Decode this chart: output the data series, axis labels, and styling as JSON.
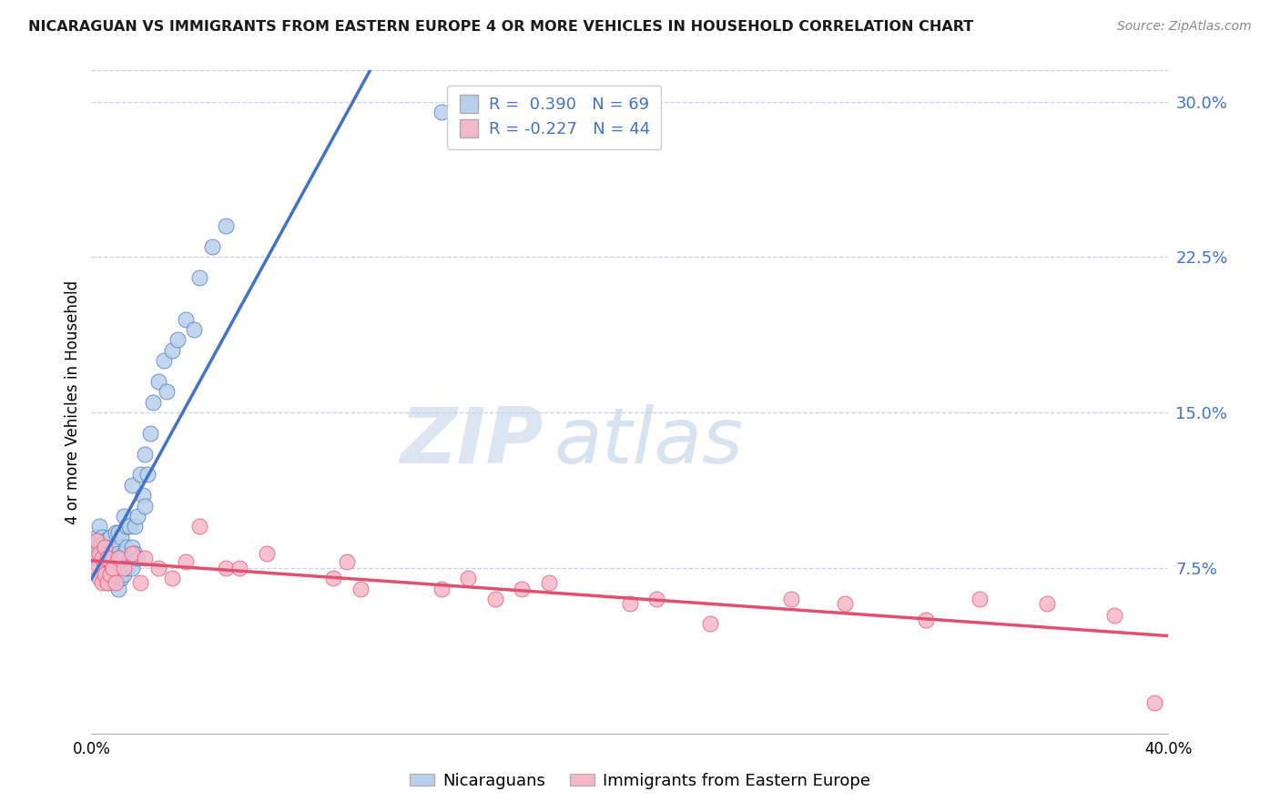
{
  "title": "NICARAGUAN VS IMMIGRANTS FROM EASTERN EUROPE 4 OR MORE VEHICLES IN HOUSEHOLD CORRELATION CHART",
  "source": "Source: ZipAtlas.com",
  "ylabel": "4 or more Vehicles in Household",
  "xlim": [
    0.0,
    0.4
  ],
  "ylim": [
    -0.005,
    0.315
  ],
  "xtick_pos": [
    0.0,
    0.4
  ],
  "xtick_labels": [
    "0.0%",
    "40.0%"
  ],
  "yticks": [
    0.075,
    0.15,
    0.225,
    0.3
  ],
  "ytick_labels": [
    "7.5%",
    "15.0%",
    "22.5%",
    "30.0%"
  ],
  "blue_R": 0.39,
  "blue_N": 69,
  "pink_R": -0.227,
  "pink_N": 44,
  "blue_color": "#b8d0ea",
  "pink_color": "#f5b8c8",
  "blue_line_color": "#4472C4",
  "pink_line_color": "#e05070",
  "dashed_line_color": "#90b8d8",
  "watermark_zip": "ZIP",
  "watermark_atlas": "atlas",
  "legend_blue_label": "Nicaraguans",
  "legend_pink_label": "Immigrants from Eastern Europe",
  "blue_x": [
    0.001,
    0.001,
    0.002,
    0.002,
    0.002,
    0.003,
    0.003,
    0.003,
    0.003,
    0.004,
    0.004,
    0.004,
    0.005,
    0.005,
    0.005,
    0.005,
    0.006,
    0.006,
    0.006,
    0.007,
    0.007,
    0.007,
    0.007,
    0.008,
    0.008,
    0.008,
    0.009,
    0.009,
    0.009,
    0.01,
    0.01,
    0.01,
    0.01,
    0.011,
    0.011,
    0.011,
    0.012,
    0.012,
    0.012,
    0.013,
    0.013,
    0.013,
    0.014,
    0.014,
    0.015,
    0.015,
    0.015,
    0.016,
    0.016,
    0.017,
    0.017,
    0.018,
    0.019,
    0.02,
    0.02,
    0.021,
    0.022,
    0.023,
    0.025,
    0.027,
    0.028,
    0.03,
    0.032,
    0.035,
    0.038,
    0.04,
    0.045,
    0.05,
    0.13
  ],
  "blue_y": [
    0.08,
    0.085,
    0.078,
    0.082,
    0.09,
    0.075,
    0.08,
    0.085,
    0.095,
    0.072,
    0.082,
    0.09,
    0.07,
    0.078,
    0.082,
    0.088,
    0.068,
    0.075,
    0.085,
    0.07,
    0.078,
    0.082,
    0.09,
    0.068,
    0.075,
    0.085,
    0.072,
    0.08,
    0.092,
    0.065,
    0.075,
    0.082,
    0.092,
    0.07,
    0.08,
    0.09,
    0.072,
    0.082,
    0.1,
    0.075,
    0.085,
    0.095,
    0.08,
    0.095,
    0.075,
    0.085,
    0.115,
    0.082,
    0.095,
    0.08,
    0.1,
    0.12,
    0.11,
    0.105,
    0.13,
    0.12,
    0.14,
    0.155,
    0.165,
    0.175,
    0.16,
    0.18,
    0.185,
    0.195,
    0.19,
    0.215,
    0.23,
    0.24,
    0.295
  ],
  "pink_x": [
    0.001,
    0.002,
    0.002,
    0.003,
    0.003,
    0.004,
    0.004,
    0.005,
    0.005,
    0.006,
    0.006,
    0.007,
    0.008,
    0.009,
    0.01,
    0.012,
    0.015,
    0.018,
    0.02,
    0.025,
    0.03,
    0.035,
    0.04,
    0.05,
    0.055,
    0.065,
    0.09,
    0.095,
    0.1,
    0.13,
    0.14,
    0.15,
    0.16,
    0.17,
    0.2,
    0.21,
    0.23,
    0.26,
    0.28,
    0.31,
    0.33,
    0.355,
    0.38,
    0.395
  ],
  "pink_y": [
    0.082,
    0.075,
    0.088,
    0.07,
    0.082,
    0.068,
    0.08,
    0.072,
    0.085,
    0.068,
    0.08,
    0.072,
    0.075,
    0.068,
    0.08,
    0.075,
    0.082,
    0.068,
    0.08,
    0.075,
    0.07,
    0.078,
    0.095,
    0.075,
    0.075,
    0.082,
    0.07,
    0.078,
    0.065,
    0.065,
    0.07,
    0.06,
    0.065,
    0.068,
    0.058,
    0.06,
    0.048,
    0.06,
    0.058,
    0.05,
    0.06,
    0.058,
    0.052,
    0.01
  ]
}
